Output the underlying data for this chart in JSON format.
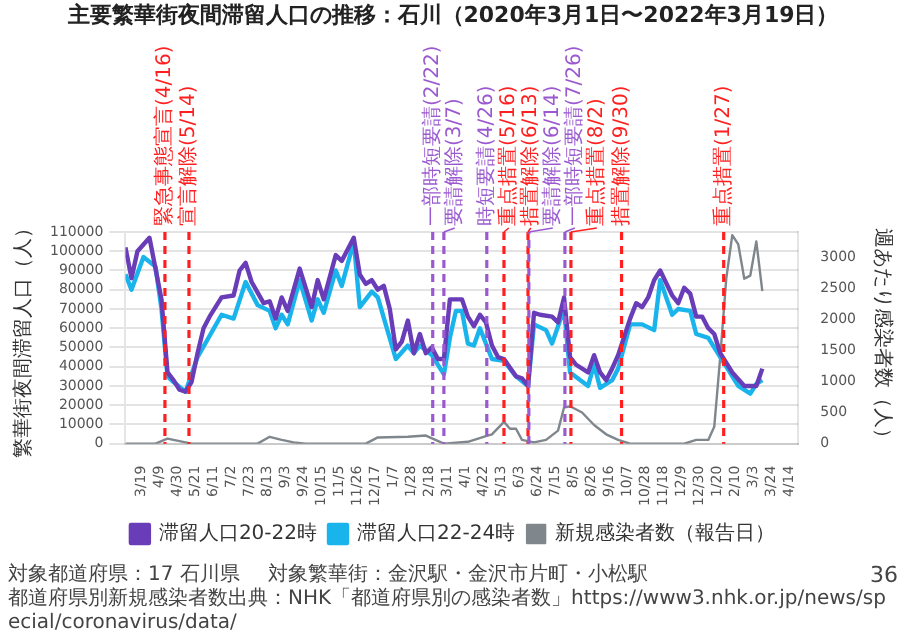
{
  "chart_data": {
    "type": "line",
    "title": "主要繁華街夜間滞留人口の推移：石川（2020年3月1日〜2022年3月19日）",
    "ylabel": "繁華街夜間滞留人口（人）",
    "y2label": "週あたり感染者数（人）",
    "series": [
      {
        "name": "滞留人口20-22時",
        "color": "#6a3db8",
        "x": [
          "2020-03-01",
          "2020-03-08",
          "2020-03-15",
          "2020-03-29",
          "2020-04-12",
          "2020-04-19",
          "2020-04-26",
          "2020-05-03",
          "2020-05-10",
          "2020-05-17",
          "2020-05-24",
          "2020-05-31",
          "2020-06-07",
          "2020-06-21",
          "2020-07-05",
          "2020-07-12",
          "2020-07-19",
          "2020-07-26",
          "2020-08-09",
          "2020-08-16",
          "2020-08-23",
          "2020-08-30",
          "2020-09-06",
          "2020-09-20",
          "2020-10-04",
          "2020-10-11",
          "2020-10-18",
          "2020-11-01",
          "2020-11-08",
          "2020-11-22",
          "2020-11-29",
          "2020-12-06",
          "2020-12-13",
          "2020-12-20",
          "2020-12-27",
          "2021-01-03",
          "2021-01-10",
          "2021-01-17",
          "2021-01-24",
          "2021-01-31",
          "2021-02-07",
          "2021-02-14",
          "2021-02-21",
          "2021-02-28",
          "2021-03-07",
          "2021-03-14",
          "2021-03-28",
          "2021-04-04",
          "2021-04-11",
          "2021-04-18",
          "2021-04-25",
          "2021-05-02",
          "2021-05-09",
          "2021-05-16",
          "2021-05-30",
          "2021-06-06",
          "2021-06-13",
          "2021-06-20",
          "2021-06-27",
          "2021-07-11",
          "2021-07-18",
          "2021-07-25",
          "2021-08-01",
          "2021-08-08",
          "2021-08-22",
          "2021-08-29",
          "2021-09-05",
          "2021-09-12",
          "2021-09-19",
          "2021-09-26",
          "2021-10-10",
          "2021-10-17",
          "2021-10-24",
          "2021-10-31",
          "2021-11-07",
          "2021-11-14",
          "2021-11-28",
          "2021-12-05",
          "2021-12-12",
          "2021-12-19",
          "2021-12-26",
          "2022-01-02",
          "2022-01-09",
          "2022-01-16",
          "2022-01-23",
          "2022-02-06",
          "2022-02-20",
          "2022-03-06",
          "2022-03-13"
        ],
        "values": [
          102000,
          86000,
          100000,
          107000,
          75000,
          37000,
          33000,
          28000,
          27000,
          32000,
          47000,
          60000,
          66000,
          76000,
          77000,
          90000,
          94000,
          84000,
          73000,
          74000,
          65000,
          76000,
          69000,
          91000,
          71000,
          85000,
          75000,
          98000,
          95000,
          107000,
          88000,
          83000,
          85000,
          80000,
          82000,
          70000,
          49000,
          53000,
          64000,
          47000,
          57000,
          47000,
          50000,
          44000,
          44000,
          75000,
          75000,
          66000,
          61000,
          67000,
          63000,
          51000,
          45000,
          44000,
          35000,
          34000,
          30000,
          68000,
          67000,
          66000,
          63000,
          76000,
          45000,
          41000,
          37000,
          46000,
          37000,
          33000,
          39000,
          46000,
          65000,
          73000,
          71000,
          76000,
          85000,
          90000,
          77000,
          73000,
          81000,
          78000,
          66000,
          66000,
          60000,
          57000,
          47000,
          37000,
          30000,
          30000,
          39000
        ]
      },
      {
        "name": "滞留人口22-24時",
        "color": "#1ab4ec",
        "x": [
          "2020-03-01",
          "2020-03-08",
          "2020-03-22",
          "2020-04-05",
          "2020-04-12",
          "2020-04-19",
          "2020-04-26",
          "2020-05-10",
          "2020-05-24",
          "2020-06-21",
          "2020-07-05",
          "2020-07-19",
          "2020-08-02",
          "2020-08-16",
          "2020-08-23",
          "2020-08-30",
          "2020-09-06",
          "2020-09-20",
          "2020-10-04",
          "2020-10-11",
          "2020-10-18",
          "2020-11-01",
          "2020-11-08",
          "2020-11-22",
          "2020-11-29",
          "2020-12-13",
          "2020-12-20",
          "2021-01-10",
          "2021-01-24",
          "2021-01-31",
          "2021-02-07",
          "2021-02-21",
          "2021-03-07",
          "2021-03-14",
          "2021-03-21",
          "2021-03-28",
          "2021-04-04",
          "2021-04-11",
          "2021-04-18",
          "2021-05-02",
          "2021-05-16",
          "2021-05-30",
          "2021-06-13",
          "2021-06-20",
          "2021-07-04",
          "2021-07-11",
          "2021-07-25",
          "2021-08-01",
          "2021-08-22",
          "2021-08-29",
          "2021-09-05",
          "2021-09-19",
          "2021-09-26",
          "2021-10-10",
          "2021-10-24",
          "2021-11-07",
          "2021-11-14",
          "2021-11-28",
          "2021-12-05",
          "2021-12-19",
          "2021-12-26",
          "2022-01-09",
          "2022-01-23",
          "2022-02-13",
          "2022-02-27",
          "2022-03-06",
          "2022-03-13"
        ],
        "values": [
          88000,
          80000,
          97000,
          92000,
          70000,
          35000,
          32000,
          27000,
          45000,
          67000,
          65000,
          84000,
          72000,
          69000,
          60000,
          67000,
          62000,
          85000,
          64000,
          75000,
          68000,
          90000,
          82000,
          105000,
          71000,
          79000,
          76000,
          44000,
          51000,
          47000,
          51000,
          46000,
          36000,
          55000,
          69000,
          69000,
          52000,
          51000,
          60000,
          44000,
          43000,
          35000,
          30000,
          62000,
          59000,
          52000,
          70000,
          37000,
          30000,
          41000,
          29000,
          33000,
          39000,
          62000,
          62000,
          59000,
          85000,
          67000,
          70000,
          69000,
          57000,
          55000,
          45000,
          30000,
          26000,
          31000,
          33000
        ]
      },
      {
        "name": "新規感染者数（報告日）",
        "color": "#7f868c",
        "axis": "y2",
        "x": [
          "2020-03-01",
          "2020-04-05",
          "2020-04-19",
          "2020-05-03",
          "2020-05-17",
          "2020-08-02",
          "2020-08-16",
          "2020-08-30",
          "2020-09-13",
          "2020-09-27",
          "2020-12-06",
          "2020-12-20",
          "2021-01-24",
          "2021-02-14",
          "2021-03-07",
          "2021-04-04",
          "2021-04-25",
          "2021-05-02",
          "2021-05-16",
          "2021-05-23",
          "2021-05-30",
          "2021-06-06",
          "2021-06-20",
          "2021-07-04",
          "2021-07-18",
          "2021-07-25",
          "2021-08-01",
          "2021-08-15",
          "2021-08-29",
          "2021-09-12",
          "2021-09-26",
          "2021-10-10",
          "2021-12-12",
          "2021-12-26",
          "2022-01-09",
          "2022-01-16",
          "2022-01-23",
          "2022-01-30",
          "2022-02-06",
          "2022-02-13",
          "2022-02-20",
          "2022-02-27",
          "2022-03-06",
          "2022-03-13"
        ],
        "values": [
          0,
          0,
          80,
          40,
          0,
          0,
          110,
          60,
          20,
          0,
          0,
          100,
          110,
          130,
          0,
          30,
          120,
          150,
          350,
          240,
          240,
          60,
          20,
          60,
          210,
          580,
          600,
          500,
          300,
          150,
          60,
          0,
          0,
          60,
          60,
          270,
          1400,
          2650,
          3350,
          3200,
          2650,
          2700,
          3250,
          2450
        ]
      }
    ],
    "xlim": [
      "2020-03-01",
      "2022-04-24"
    ],
    "xticks": [
      {
        "value": "2020-03-19",
        "label": "3/19"
      },
      {
        "value": "2020-04-09",
        "label": "4/9"
      },
      {
        "value": "2020-04-30",
        "label": "4/30"
      },
      {
        "value": "2020-05-21",
        "label": "5/21"
      },
      {
        "value": "2020-06-11",
        "label": "6/11"
      },
      {
        "value": "2020-07-02",
        "label": "7/2"
      },
      {
        "value": "2020-07-23",
        "label": "7/23"
      },
      {
        "value": "2020-08-13",
        "label": "8/13"
      },
      {
        "value": "2020-09-03",
        "label": "9/3"
      },
      {
        "value": "2020-09-24",
        "label": "9/24"
      },
      {
        "value": "2020-10-15",
        "label": "10/15"
      },
      {
        "value": "2020-11-05",
        "label": "11/5"
      },
      {
        "value": "2020-11-26",
        "label": "11/26"
      },
      {
        "value": "2020-12-17",
        "label": "12/17"
      },
      {
        "value": "2021-01-07",
        "label": "1/7"
      },
      {
        "value": "2021-01-28",
        "label": "1/28"
      },
      {
        "value": "2021-02-18",
        "label": "2/18"
      },
      {
        "value": "2021-03-11",
        "label": "3/11"
      },
      {
        "value": "2021-04-01",
        "label": "4/1"
      },
      {
        "value": "2021-04-22",
        "label": "4/22"
      },
      {
        "value": "2021-05-13",
        "label": "5/13"
      },
      {
        "value": "2021-06-03",
        "label": "6/3"
      },
      {
        "value": "2021-06-24",
        "label": "6/24"
      },
      {
        "value": "2021-07-15",
        "label": "7/15"
      },
      {
        "value": "2021-08-05",
        "label": "8/5"
      },
      {
        "value": "2021-08-26",
        "label": "8/26"
      },
      {
        "value": "2021-09-16",
        "label": "9/16"
      },
      {
        "value": "2021-10-07",
        "label": "10/7"
      },
      {
        "value": "2021-10-28",
        "label": "10/28"
      },
      {
        "value": "2021-11-18",
        "label": "11/18"
      },
      {
        "value": "2021-12-09",
        "label": "12/9"
      },
      {
        "value": "2021-12-30",
        "label": "12/30"
      },
      {
        "value": "2022-01-20",
        "label": "1/20"
      },
      {
        "value": "2022-02-10",
        "label": "2/10"
      },
      {
        "value": "2022-03-03",
        "label": "3/3"
      },
      {
        "value": "2022-03-24",
        "label": "3/24"
      },
      {
        "value": "2022-04-14",
        "label": "4/14"
      }
    ],
    "ylim": [
      0,
      110000
    ],
    "yticks": [
      0,
      10000,
      20000,
      30000,
      40000,
      50000,
      60000,
      70000,
      80000,
      90000,
      100000,
      110000
    ],
    "y2lim": [
      0,
      3400
    ],
    "y2ticks": [
      0,
      500,
      1000,
      1500,
      2000,
      2500,
      3000
    ],
    "ref_lines": [
      {
        "axis": "x",
        "value": "2020-04-16",
        "label": "緊急事態宣言(4/16)",
        "color": "#ff1f1f",
        "line_style": "dashed"
      },
      {
        "axis": "x",
        "value": "2020-05-14",
        "label": "宣言解除(5/14)",
        "color": "#ff1f1f",
        "line_style": "dashed"
      },
      {
        "axis": "x",
        "value": "2021-02-22",
        "label": "一部時短要請(2/22)",
        "color": "#9b59d0",
        "line_style": "dashed"
      },
      {
        "axis": "x",
        "value": "2021-03-07",
        "label": "要請解除(3/7)",
        "color": "#9b59d0",
        "line_style": "dashed"
      },
      {
        "axis": "x",
        "value": "2021-04-26",
        "label": "時短要請(4/26)",
        "color": "#9b59d0",
        "line_style": "dashed"
      },
      {
        "axis": "x",
        "value": "2021-05-16",
        "label": "重点措置(5/16)",
        "color": "#ff1f1f",
        "line_style": "dashed"
      },
      {
        "axis": "x",
        "value": "2021-06-13",
        "label": "措置解除(6/13)",
        "color": "#ff1f1f",
        "line_style": "dashed"
      },
      {
        "axis": "x",
        "value": "2021-06-14",
        "label": "要請解除(6/14)",
        "color": "#9b59d0",
        "line_style": "dashed"
      },
      {
        "axis": "x",
        "value": "2021-07-26",
        "label": "一部時短要請(7/26)",
        "color": "#9b59d0",
        "line_style": "dashed"
      },
      {
        "axis": "x",
        "value": "2021-08-02",
        "label": "重点措置(8/2)",
        "color": "#ff1f1f",
        "line_style": "dashed"
      },
      {
        "axis": "x",
        "value": "2021-09-30",
        "label": "措置解除(9/30)",
        "color": "#ff1f1f",
        "line_style": "dashed"
      },
      {
        "axis": "x",
        "value": "2022-01-27",
        "label": "重点措置(1/27)",
        "color": "#ff1f1f",
        "line_style": "dashed"
      }
    ],
    "annotations": [
      "対象都道府県：17 石川県",
      "対象繁華街：金沢駅・金沢市片町・小松駅",
      "都道府県別新規感染者数出典：NHK「都道府県別の感染者数」https://www3.nhk.or.jp/news/special/coronavirus/data/",
      "36"
    ],
    "grid": "y",
    "legend": "bottom",
    "marker": "none",
    "line_style": "solid"
  }
}
